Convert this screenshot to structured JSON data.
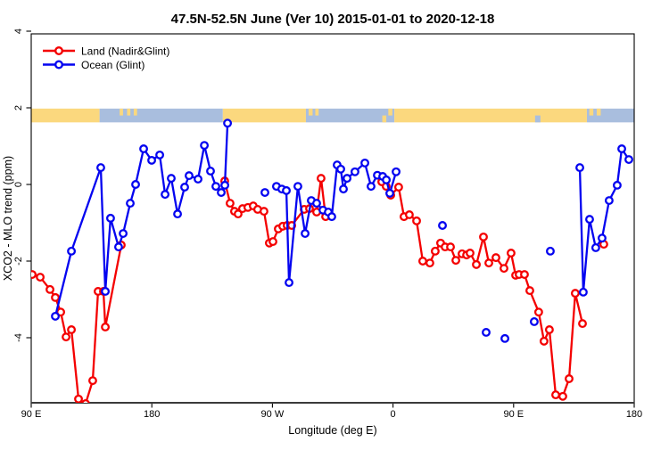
{
  "title": "47.5N-52.5N June (Ver 10)   2015-01-01 to 2020-12-18",
  "legend": {
    "items": [
      {
        "label": "Land (Nadir&Glint)",
        "series": "land"
      },
      {
        "label": "Ocean (Glint)",
        "series": "ocean"
      }
    ]
  },
  "colors": {
    "land_series": "#f40000",
    "ocean_series": "#0404f0",
    "band_land": "#fbd87e",
    "band_ocean": "#a9bede",
    "axis": "#000000",
    "bottom_axis": "#3a3a3a"
  },
  "chart_data": {
    "type": "line",
    "title": "47.5N-52.5N June (Ver 10)   2015-01-01 to 2020-12-18",
    "xlabel": "Longitude (deg E)",
    "ylabel": "XCO2 - MLO trend (ppm)",
    "xlim": [
      90,
      540
    ],
    "ylim": [
      -5.7,
      3.93
    ],
    "grid": false,
    "legend_position": "top-left-inside",
    "x_ticks": [
      {
        "value": 90,
        "label": "90 E"
      },
      {
        "value": 180,
        "label": "180"
      },
      {
        "value": 270,
        "label": "90 W"
      },
      {
        "value": 360,
        "label": "0"
      },
      {
        "value": 450,
        "label": "90 E"
      },
      {
        "value": 540,
        "label": "180"
      }
    ],
    "y_ticks": [
      {
        "value": 4,
        "label": "4"
      },
      {
        "value": 2,
        "label": "2"
      },
      {
        "value": 0,
        "label": "0"
      },
      {
        "value": -2,
        "label": "-2"
      },
      {
        "value": -4,
        "label": "-4"
      }
    ],
    "series": [
      {
        "name": "Land (Nadir&Glint)",
        "key": "land",
        "marker": "open-circle",
        "segments": [
          [
            [
              90.7,
              -2.35
            ],
            [
              96.7,
              -2.42
            ],
            [
              104.0,
              -2.74
            ],
            [
              108.0,
              -2.95
            ],
            [
              112.0,
              -3.33
            ],
            [
              116.0,
              -3.98
            ],
            [
              120.0,
              -3.79
            ],
            [
              125.3,
              -5.6
            ],
            [
              130.6,
              -5.72
            ],
            [
              135.9,
              -5.12
            ],
            [
              139.9,
              -2.79
            ],
            [
              143.9,
              -2.79
            ],
            [
              145.3,
              -3.72
            ],
            [
              157.2,
              -1.58
            ]
          ],
          [
            [
              234.4,
              0.09
            ],
            [
              238.4,
              -0.49
            ],
            [
              241.7,
              -0.7
            ],
            [
              244.4,
              -0.77
            ],
            [
              247.7,
              -0.63
            ],
            [
              251.7,
              -0.6
            ],
            [
              255.7,
              -0.56
            ],
            [
              259.0,
              -0.65
            ],
            [
              263.7,
              -0.7
            ],
            [
              267.7,
              -1.53
            ],
            [
              270.4,
              -1.49
            ],
            [
              274.4,
              -1.16
            ],
            [
              277.7,
              -1.09
            ],
            [
              281.0,
              -1.07
            ],
            [
              284.4,
              -1.07
            ],
            [
              293.7,
              -0.65
            ],
            [
              297.7,
              -0.63
            ],
            [
              303.0,
              -0.72
            ],
            [
              306.3,
              0.16
            ],
            [
              309.7,
              -0.84
            ]
          ],
          [
            [
              351.6,
              0.07
            ],
            [
              354.9,
              -0.05
            ],
            [
              358.3,
              -0.28
            ],
            [
              364.2,
              -0.07
            ],
            [
              368.2,
              -0.84
            ],
            [
              372.2,
              -0.79
            ],
            [
              377.6,
              -0.95
            ],
            [
              382.2,
              -2.0
            ],
            [
              387.5,
              -2.05
            ],
            [
              391.5,
              -1.74
            ],
            [
              395.5,
              -1.53
            ],
            [
              398.9,
              -1.63
            ],
            [
              402.9,
              -1.63
            ],
            [
              406.9,
              -1.98
            ],
            [
              411.5,
              -1.81
            ],
            [
              414.9,
              -1.84
            ],
            [
              417.5,
              -1.79
            ],
            [
              422.2,
              -2.09
            ],
            [
              427.5,
              -1.37
            ],
            [
              431.5,
              -2.05
            ],
            [
              436.8,
              -1.91
            ],
            [
              442.8,
              -2.19
            ],
            [
              448.1,
              -1.79
            ],
            [
              451.5,
              -2.37
            ],
            [
              454.1,
              -2.35
            ],
            [
              458.1,
              -2.35
            ],
            [
              462.1,
              -2.77
            ],
            [
              468.7,
              -3.33
            ],
            [
              472.7,
              -4.09
            ],
            [
              476.7,
              -3.79
            ],
            [
              481.4,
              -5.49
            ],
            [
              486.7,
              -5.53
            ],
            [
              491.4,
              -5.07
            ],
            [
              496.0,
              -2.84
            ],
            [
              501.4,
              -3.63
            ]
          ]
        ],
        "isolated_points": [
          [
            517.3,
            -1.56
          ]
        ]
      },
      {
        "name": "Ocean (Glint)",
        "key": "ocean",
        "marker": "open-circle",
        "segments": [
          [
            [
              108.0,
              -3.44
            ],
            [
              120.0,
              -1.74
            ],
            [
              141.9,
              0.44
            ],
            [
              145.3,
              -2.79
            ],
            [
              149.2,
              -0.88
            ],
            [
              155.2,
              -1.63
            ],
            [
              158.6,
              -1.28
            ],
            [
              163.9,
              -0.49
            ],
            [
              167.9,
              0.0
            ],
            [
              173.9,
              0.93
            ],
            [
              179.9,
              0.63
            ],
            [
              185.9,
              0.77
            ],
            [
              189.9,
              -0.26
            ],
            [
              194.5,
              0.16
            ],
            [
              199.2,
              -0.77
            ],
            [
              204.5,
              -0.07
            ],
            [
              207.8,
              0.23
            ],
            [
              214.5,
              0.14
            ],
            [
              219.2,
              1.02
            ],
            [
              223.8,
              0.35
            ],
            [
              227.8,
              -0.05
            ],
            [
              231.8,
              -0.21
            ],
            [
              234.5,
              -0.02
            ],
            [
              236.5,
              1.6
            ]
          ],
          [
            [
              273.0,
              -0.05
            ],
            [
              277.0,
              -0.12
            ],
            [
              280.4,
              -0.16
            ],
            [
              282.4,
              -2.56
            ],
            [
              289.0,
              -0.05
            ],
            [
              294.4,
              -1.28
            ],
            [
              299.0,
              -0.42
            ],
            [
              303.0,
              -0.49
            ],
            [
              307.7,
              -0.67
            ],
            [
              311.7,
              -0.72
            ],
            [
              314.3,
              -0.84
            ],
            [
              318.3,
              0.51
            ],
            [
              321.0,
              0.4
            ],
            [
              323.0,
              -0.12
            ],
            [
              325.7,
              0.16
            ],
            [
              331.6,
              0.33
            ],
            [
              339.0,
              0.56
            ],
            [
              343.6,
              -0.05
            ],
            [
              348.3,
              0.24
            ],
            [
              352.3,
              0.21
            ],
            [
              355.0,
              0.12
            ],
            [
              357.6,
              -0.23
            ],
            [
              362.3,
              0.33
            ]
          ],
          [
            [
              499.4,
              0.44
            ],
            [
              502.0,
              -2.81
            ],
            [
              506.7,
              -0.91
            ],
            [
              511.3,
              -1.65
            ],
            [
              516.0,
              -1.4
            ],
            [
              521.3,
              -0.42
            ],
            [
              527.3,
              -0.02
            ],
            [
              530.7,
              0.93
            ],
            [
              536.0,
              0.65
            ]
          ]
        ],
        "isolated_points": [
          [
            264.4,
            -0.21
          ],
          [
            396.9,
            -1.07
          ],
          [
            429.5,
            -3.86
          ],
          [
            443.5,
            -4.02
          ],
          [
            465.4,
            -3.58
          ],
          [
            477.4,
            -1.74
          ]
        ]
      }
    ],
    "land_ocean_band": {
      "value_top": 1.98,
      "value_bottom": 1.62,
      "segments": [
        {
          "from": 90,
          "to": 141,
          "type": "land"
        },
        {
          "from": 141,
          "to": 233,
          "type": "ocean"
        },
        {
          "from": 233,
          "to": 295,
          "type": "land"
        },
        {
          "from": 295,
          "to": 361,
          "type": "ocean"
        },
        {
          "from": 361,
          "to": 504.7,
          "type": "land"
        },
        {
          "from": 504.7,
          "to": 540,
          "type": "ocean"
        }
      ],
      "speckles": [
        {
          "from": 156.0,
          "to": 158.5,
          "type": "land",
          "pos": "top"
        },
        {
          "from": 161.5,
          "to": 164.0,
          "type": "land",
          "pos": "top"
        },
        {
          "from": 166.5,
          "to": 169.0,
          "type": "land",
          "pos": "top"
        },
        {
          "from": 297.0,
          "to": 300.0,
          "type": "land",
          "pos": "top"
        },
        {
          "from": 302.0,
          "to": 304.5,
          "type": "land",
          "pos": "top"
        },
        {
          "from": 352.0,
          "to": 355.0,
          "type": "land",
          "pos": "bottom"
        },
        {
          "from": 356.5,
          "to": 359.5,
          "type": "land",
          "pos": "top"
        },
        {
          "from": 466.0,
          "to": 470.0,
          "type": "ocean",
          "pos": "bottom"
        },
        {
          "from": 506.5,
          "to": 509.5,
          "type": "land",
          "pos": "top"
        },
        {
          "from": 512.0,
          "to": 515.0,
          "type": "land",
          "pos": "top"
        }
      ]
    }
  }
}
